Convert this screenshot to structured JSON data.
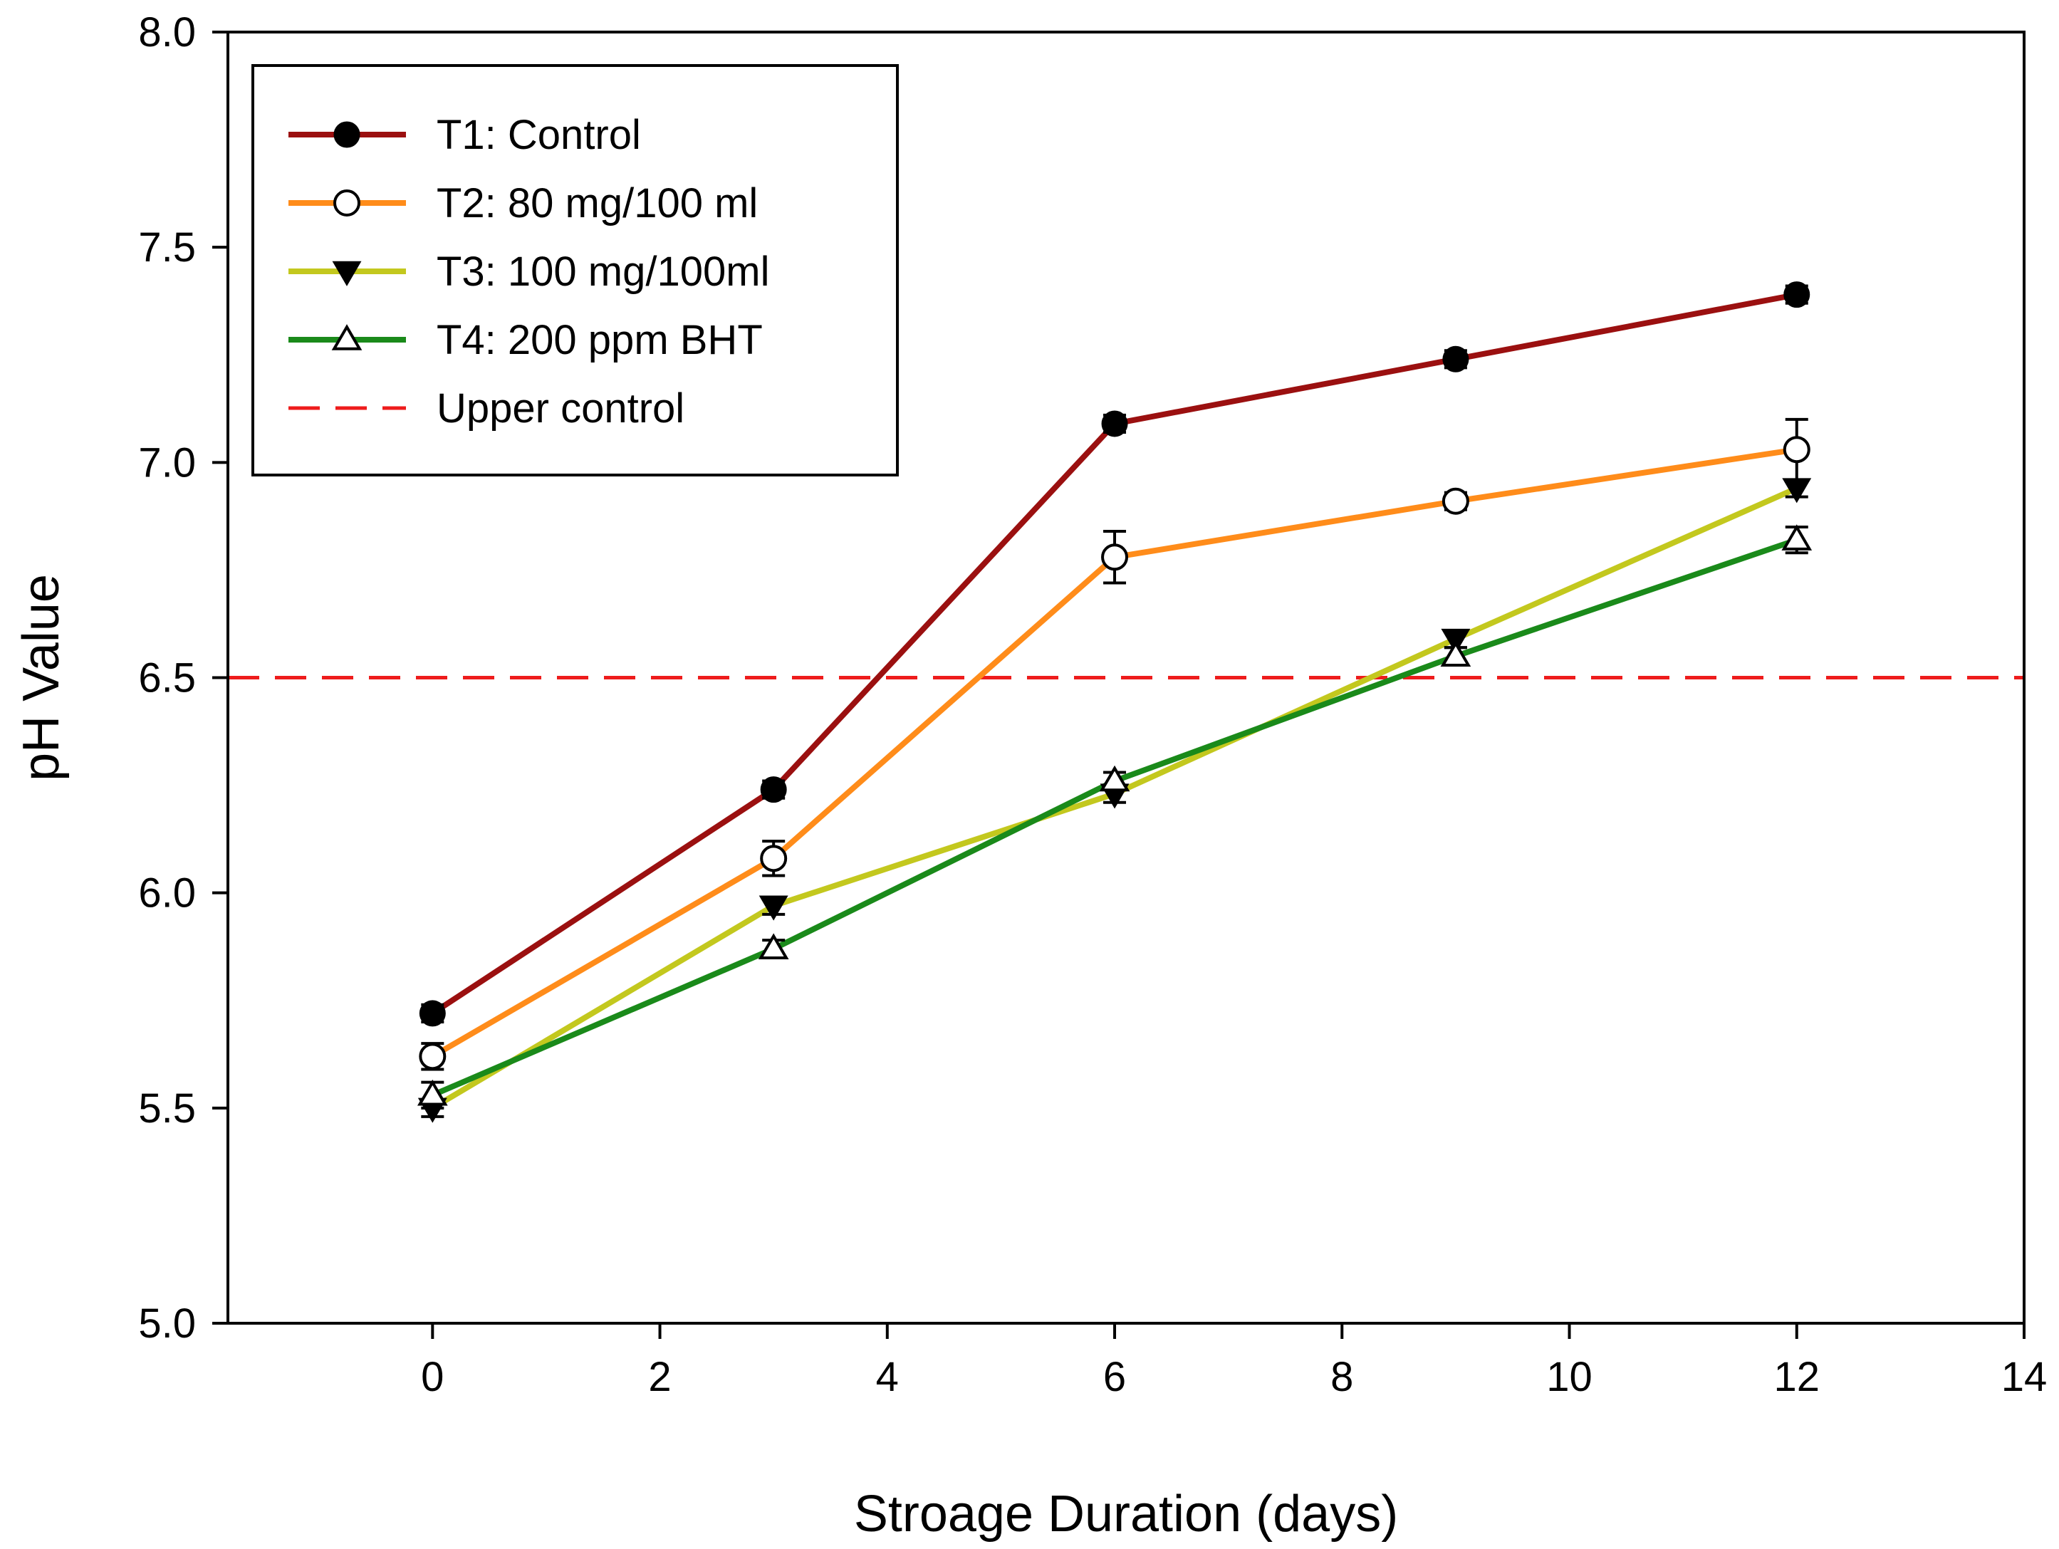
{
  "chart_data": {
    "type": "line",
    "xlabel": "Stroage Duration (days)",
    "ylabel": "pH Value",
    "xlim": [
      -1.8,
      14
    ],
    "ylim": [
      5.0,
      8.0
    ],
    "xticks": [
      0,
      2,
      4,
      6,
      8,
      10,
      12,
      14
    ],
    "xtick_labels": [
      "0",
      "2",
      "4",
      "6",
      "8",
      "10",
      "12",
      "14"
    ],
    "yticks": [
      5.0,
      5.5,
      6.0,
      6.5,
      7.0,
      7.5,
      8.0
    ],
    "ytick_labels": [
      "5.0",
      "5.5",
      "6.0",
      "6.5",
      "7.0",
      "7.5",
      "8.0"
    ],
    "grid": false,
    "legend_position": "top-left",
    "x": [
      0,
      3,
      6,
      9,
      12
    ],
    "series": [
      {
        "name": "T1: Control",
        "color": "#9b1010",
        "marker": "filled-circle",
        "values": [
          5.72,
          6.24,
          7.09,
          7.24,
          7.39
        ],
        "errors": [
          0.02,
          0.02,
          0.02,
          0.02,
          0.02
        ]
      },
      {
        "name": "T2: 80 mg/100 ml",
        "color": "#ff8c1a",
        "marker": "open-circle",
        "values": [
          5.62,
          6.08,
          6.78,
          6.91,
          7.03
        ],
        "errors": [
          0.03,
          0.04,
          0.06,
          0.02,
          0.07
        ]
      },
      {
        "name": "T3: 100 mg/100ml",
        "color": "#c3c81e",
        "marker": "filled-triangle-down",
        "values": [
          5.5,
          5.97,
          6.23,
          6.59,
          6.94
        ],
        "errors": [
          0.02,
          0.02,
          0.02,
          0.02,
          0.02
        ]
      },
      {
        "name": "T4: 200 ppm BHT",
        "color": "#1a8a1a",
        "marker": "open-triangle-up",
        "values": [
          5.53,
          5.87,
          6.26,
          6.55,
          6.82
        ],
        "errors": [
          0.03,
          0.02,
          0.02,
          0.02,
          0.03
        ]
      }
    ],
    "reference_lines": [
      {
        "name": "Upper control",
        "y": 6.5,
        "color": "#ee1c1c",
        "style": "dashed"
      }
    ]
  }
}
